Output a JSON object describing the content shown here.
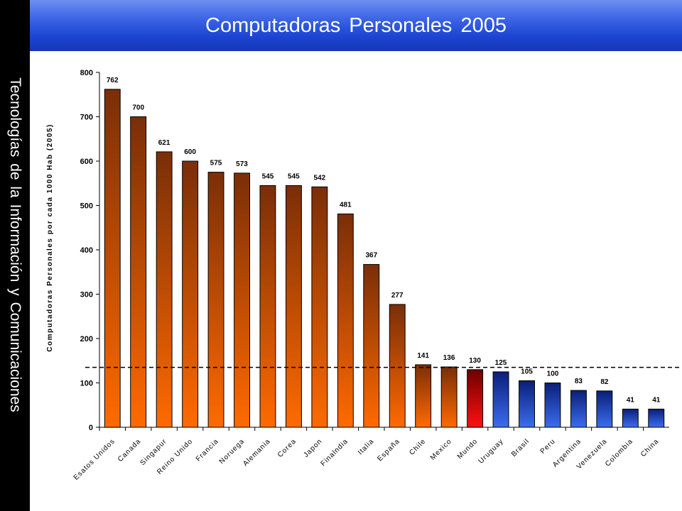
{
  "side_title": "Tecnologías de la Información y Comunicaciones",
  "title": "Computadoras Personales 2005",
  "chart_data": {
    "type": "bar",
    "ylabel": "Computadoras Personales por cada 1000 Hab (2005)",
    "xlabel": "",
    "ylim": [
      0,
      800
    ],
    "yticks": [
      0,
      100,
      200,
      300,
      400,
      500,
      600,
      700,
      800
    ],
    "categories": [
      "Esatos Unidos",
      "Canada",
      "Singapur",
      "Reino Unido",
      "Francia",
      "Noruega",
      "Alemania",
      "Corea",
      "Japon",
      "Finalndia",
      "Italia",
      "España",
      "Chile",
      "Mexico",
      "Mundo",
      "Uruguay",
      "Brasil",
      "Peru",
      "Argentina",
      "Venezuela",
      "Colombia",
      "China"
    ],
    "values": [
      762,
      700,
      621,
      600,
      575,
      573,
      545,
      545,
      542,
      481,
      367,
      277,
      141,
      136,
      130,
      125,
      105,
      100,
      83,
      82,
      41,
      41
    ],
    "value_labels": [
      "762",
      "700",
      "621",
      "600",
      "575",
      "573",
      "545",
      "545",
      "542",
      "481",
      "367",
      "277",
      "141",
      "136",
      "130",
      "125",
      "105",
      "100",
      "83",
      "82",
      "41",
      "41"
    ],
    "bar_groups": [
      "orange",
      "orange",
      "orange",
      "orange",
      "orange",
      "orange",
      "orange",
      "orange",
      "orange",
      "orange",
      "orange",
      "orange",
      "orange",
      "orange",
      "red",
      "blue",
      "blue",
      "blue",
      "blue",
      "blue",
      "blue",
      "blue"
    ],
    "reference_line": 135,
    "grid": false,
    "legend": "none",
    "colors": {
      "orange_top": "#7a2e08",
      "orange_bottom": "#ff6a00",
      "red_top": "#6e0000",
      "red_bottom": "#ff1010",
      "blue_top": "#0a1e78",
      "blue_bottom": "#3c6cf0"
    }
  }
}
